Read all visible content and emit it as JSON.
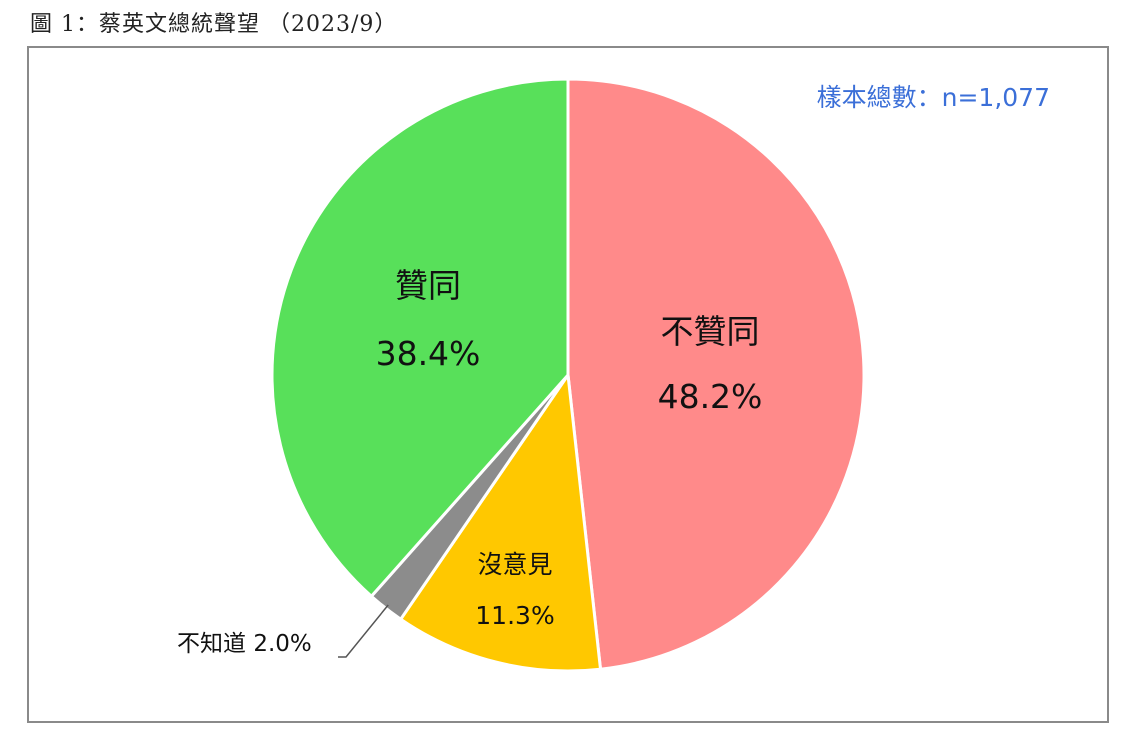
{
  "caption": "圖 1：蔡英文總統聲望 （2023/9）",
  "sample_note": "樣本總數：n=1,077",
  "colors": {
    "disapprove": "#ff8a8a",
    "no_opinion": "#ffc800",
    "dont_know": "#8c8c8c",
    "approve": "#58e05a",
    "sample_text": "#3b6fd8"
  },
  "chart_data": {
    "type": "pie",
    "start": "12 o'clock",
    "direction": "clockwise",
    "slices": [
      {
        "label": "不贊同",
        "value": 48.2,
        "value_label": "48.2%",
        "color": "#ff8a8a"
      },
      {
        "label": "沒意見",
        "value": 11.3,
        "value_label": "11.3%",
        "color": "#ffc800"
      },
      {
        "label": "不知道",
        "value": 2.0,
        "value_label": "2.0%",
        "color": "#8c8c8c"
      },
      {
        "label": "贊同",
        "value": 38.4,
        "value_label": "38.4%",
        "color": "#58e05a"
      }
    ]
  }
}
